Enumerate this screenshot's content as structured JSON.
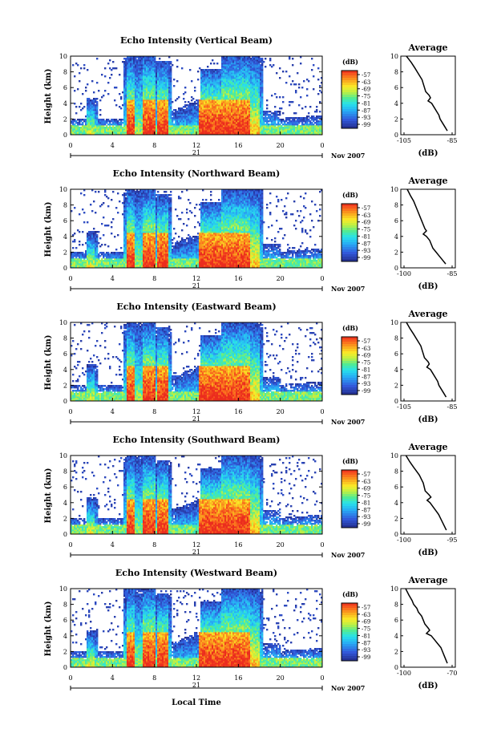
{
  "figure": {
    "x_axis_label": "Local Time",
    "date_day": "21",
    "date_month_year": "Nov 2007"
  },
  "colorbar": {
    "unit_label": "(dB)",
    "ticks": [
      "-57",
      "-63",
      "-69",
      "-75",
      "-81",
      "-87",
      "-93",
      "-99"
    ]
  },
  "average_label": "Average",
  "average_x_label": "(dB)",
  "chart_data": [
    {
      "type": "heatmap",
      "title": "Echo Intensity (Vertical Beam)",
      "xlabel": "",
      "ylabel": "Height (km)",
      "x_ticks": [
        "0",
        "4",
        "8",
        "12",
        "16",
        "20",
        "0"
      ],
      "y_ticks": [
        "0",
        "2",
        "4",
        "6",
        "8",
        "10"
      ],
      "xlim": [
        0,
        24
      ],
      "ylim": [
        0,
        10
      ],
      "colorbar_range_db": [
        -99,
        -57
      ],
      "profile": {
        "type": "line",
        "title": "Average",
        "xlabel": "(dB)",
        "x_ticks": [
          "-105",
          "-85"
        ],
        "xlim": [
          -105,
          -85
        ],
        "ylim": [
          0,
          10
        ],
        "x": [
          -104,
          -102,
          -100.5,
          -99.5,
          -98.5,
          -97.5,
          -97,
          -96.5,
          -96,
          -94.5,
          -94,
          -95,
          -93.5,
          -92.5,
          -91.5,
          -90.5,
          -90,
          -89,
          -88,
          -87
        ],
        "y": [
          10,
          9.2,
          8.5,
          8.0,
          7.5,
          7.0,
          6.5,
          6.0,
          5.5,
          5.0,
          4.7,
          4.3,
          4.0,
          3.5,
          3.0,
          2.5,
          2.0,
          1.5,
          1.0,
          0.5
        ]
      }
    },
    {
      "type": "heatmap",
      "title": "Echo Intensity (Northward Beam)",
      "xlabel": "",
      "ylabel": "Height (km)",
      "x_ticks": [
        "0",
        "4",
        "8",
        "12",
        "16",
        "20",
        "0"
      ],
      "y_ticks": [
        "0",
        "2",
        "4",
        "6",
        "8",
        "10"
      ],
      "xlim": [
        0,
        24
      ],
      "ylim": [
        0,
        10
      ],
      "colorbar_range_db": [
        -99,
        -57
      ],
      "profile": {
        "type": "line",
        "title": "Average",
        "xlabel": "(dB)",
        "x_ticks": [
          "-100",
          "-85"
        ],
        "xlim": [
          -100,
          -85
        ],
        "ylim": [
          0,
          10
        ],
        "x": [
          -99,
          -98,
          -97,
          -96.5,
          -96,
          -95.5,
          -95,
          -94.5,
          -94,
          -93.5,
          -93,
          -94,
          -93,
          -92,
          -91.5,
          -91,
          -90,
          -89,
          -88,
          -87
        ],
        "y": [
          10,
          9.2,
          8.5,
          8.0,
          7.5,
          7.0,
          6.5,
          6.0,
          5.5,
          5.0,
          4.7,
          4.3,
          4.0,
          3.5,
          3.0,
          2.5,
          2.0,
          1.5,
          1.0,
          0.5
        ]
      }
    },
    {
      "type": "heatmap",
      "title": "Echo Intensity (Eastward Beam)",
      "xlabel": "",
      "ylabel": "Height (km)",
      "x_ticks": [
        "0",
        "4",
        "8",
        "12",
        "16",
        "20",
        "0"
      ],
      "y_ticks": [
        "0",
        "2",
        "4",
        "6",
        "8",
        "10"
      ],
      "xlim": [
        0,
        24
      ],
      "ylim": [
        0,
        10
      ],
      "colorbar_range_db": [
        -99,
        -57
      ],
      "profile": {
        "type": "line",
        "title": "Average",
        "xlabel": "(dB)",
        "x_ticks": [
          "-105",
          "-85"
        ],
        "xlim": [
          -105,
          -85
        ],
        "ylim": [
          0,
          10
        ],
        "x": [
          -104,
          -102.5,
          -101,
          -100,
          -99,
          -98,
          -97.5,
          -97,
          -96.5,
          -95,
          -94.5,
          -95.5,
          -94,
          -93,
          -92,
          -91,
          -90.5,
          -89.5,
          -88.5,
          -87.5
        ],
        "y": [
          10,
          9.2,
          8.5,
          8.0,
          7.5,
          7.0,
          6.5,
          6.0,
          5.5,
          5.0,
          4.7,
          4.3,
          4.0,
          3.5,
          3.0,
          2.5,
          2.0,
          1.5,
          1.0,
          0.5
        ]
      }
    },
    {
      "type": "heatmap",
      "title": "Echo Intensity (Southward Beam)",
      "xlabel": "",
      "ylabel": "Height (km)",
      "x_ticks": [
        "0",
        "4",
        "8",
        "12",
        "16",
        "20",
        "0"
      ],
      "y_ticks": [
        "0",
        "2",
        "4",
        "6",
        "8",
        "10"
      ],
      "xlim": [
        0,
        24
      ],
      "ylim": [
        0,
        10
      ],
      "colorbar_range_db": [
        -99,
        -57
      ],
      "profile": {
        "type": "line",
        "title": "Average",
        "xlabel": "(dB)",
        "x_ticks": [
          "-100",
          "-95"
        ],
        "xlim": [
          -100,
          -95
        ],
        "ylim": [
          0,
          10
        ],
        "x": [
          -99.8,
          -99.4,
          -99,
          -98.7,
          -98.4,
          -98.2,
          -98.0,
          -97.9,
          -97.8,
          -97.4,
          -97.2,
          -97.6,
          -97.3,
          -97.0,
          -96.7,
          -96.4,
          -96.2,
          -96.0,
          -95.8,
          -95.6
        ],
        "y": [
          10,
          9.2,
          8.5,
          8.0,
          7.5,
          7.0,
          6.5,
          6.0,
          5.5,
          5.0,
          4.7,
          4.3,
          4.0,
          3.5,
          3.0,
          2.5,
          2.0,
          1.5,
          1.0,
          0.5
        ]
      }
    },
    {
      "type": "heatmap",
      "title": "Echo Intensity (Westward Beam)",
      "xlabel": "Local Time",
      "ylabel": "Height (km)",
      "x_ticks": [
        "0",
        "4",
        "8",
        "12",
        "16",
        "20",
        "0"
      ],
      "y_ticks": [
        "0",
        "2",
        "4",
        "6",
        "8",
        "10"
      ],
      "xlim": [
        0,
        24
      ],
      "ylim": [
        0,
        10
      ],
      "colorbar_range_db": [
        -99,
        -57
      ],
      "profile": {
        "type": "line",
        "title": "Average",
        "xlabel": "(dB)",
        "x_ticks": [
          "-100",
          "-70"
        ],
        "xlim": [
          -100,
          -70
        ],
        "ylim": [
          0,
          10
        ],
        "x": [
          -99,
          -97,
          -95,
          -94,
          -92,
          -91,
          -89,
          -88,
          -87,
          -85,
          -84,
          -86,
          -83,
          -81,
          -79,
          -77,
          -76,
          -75,
          -74,
          -73
        ],
        "y": [
          10,
          9.2,
          8.5,
          8.0,
          7.5,
          7.0,
          6.5,
          6.0,
          5.5,
          5.0,
          4.7,
          4.3,
          4.0,
          3.5,
          3.0,
          2.5,
          2.0,
          1.5,
          1.0,
          0.5
        ]
      }
    }
  ]
}
